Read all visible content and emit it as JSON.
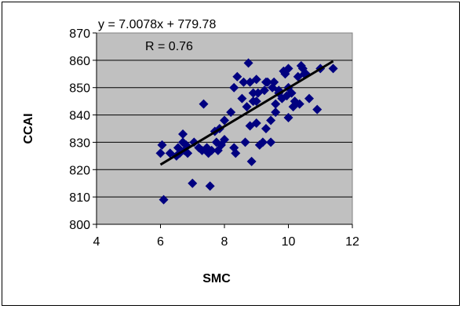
{
  "chart_data": {
    "type": "scatter",
    "title": "",
    "xlabel": "SMC",
    "ylabel": "CCAI",
    "xlim": [
      4,
      12
    ],
    "ylim": [
      800,
      870
    ],
    "xticks": [
      "4",
      "6",
      "8",
      "10",
      "12"
    ],
    "yticks": [
      "800",
      "810",
      "820",
      "830",
      "840",
      "850",
      "860",
      "870"
    ],
    "plot_background": "#c0c0c0",
    "marker_color": "#000080",
    "marker_shape": "diamond",
    "grid": "horizontal",
    "legend": "none",
    "annotations": [
      "y = 7.0078x + 779.78",
      "R = 0.76"
    ],
    "trendline": {
      "slope": 7.0078,
      "intercept": 779.78,
      "x_range": [
        6.0,
        11.4
      ],
      "color": "#000000"
    },
    "series": [
      {
        "points": [
          [
            6.0,
            826
          ],
          [
            6.05,
            829
          ],
          [
            6.1,
            809
          ],
          [
            6.3,
            826
          ],
          [
            6.5,
            825
          ],
          [
            6.55,
            828
          ],
          [
            6.6,
            826
          ],
          [
            6.7,
            833
          ],
          [
            6.7,
            830
          ],
          [
            6.75,
            827
          ],
          [
            6.8,
            829
          ],
          [
            6.85,
            826
          ],
          [
            7.0,
            815
          ],
          [
            7.05,
            830
          ],
          [
            7.2,
            828
          ],
          [
            7.3,
            827
          ],
          [
            7.35,
            844
          ],
          [
            7.45,
            828
          ],
          [
            7.5,
            826
          ],
          [
            7.55,
            814
          ],
          [
            7.6,
            827
          ],
          [
            7.7,
            834
          ],
          [
            7.75,
            830
          ],
          [
            7.8,
            827
          ],
          [
            7.85,
            835
          ],
          [
            7.9,
            829
          ],
          [
            8.0,
            831
          ],
          [
            8.0,
            838
          ],
          [
            8.2,
            841
          ],
          [
            8.3,
            828
          ],
          [
            8.3,
            850
          ],
          [
            8.35,
            826
          ],
          [
            8.4,
            854
          ],
          [
            8.55,
            846
          ],
          [
            8.6,
            852
          ],
          [
            8.65,
            830
          ],
          [
            8.7,
            843
          ],
          [
            8.75,
            859
          ],
          [
            8.8,
            852
          ],
          [
            8.8,
            836
          ],
          [
            8.85,
            823
          ],
          [
            8.9,
            848
          ],
          [
            8.9,
            845
          ],
          [
            9.0,
            853
          ],
          [
            9.0,
            845
          ],
          [
            9.0,
            837
          ],
          [
            9.05,
            848
          ],
          [
            9.1,
            829
          ],
          [
            9.2,
            830
          ],
          [
            9.25,
            849
          ],
          [
            9.3,
            852
          ],
          [
            9.3,
            835
          ],
          [
            9.35,
            852
          ],
          [
            9.45,
            830
          ],
          [
            9.45,
            838
          ],
          [
            9.5,
            850
          ],
          [
            9.55,
            852
          ],
          [
            9.6,
            844
          ],
          [
            9.6,
            841
          ],
          [
            9.7,
            849
          ],
          [
            9.7,
            848
          ],
          [
            9.8,
            846
          ],
          [
            9.85,
            856
          ],
          [
            9.9,
            855
          ],
          [
            9.95,
            847
          ],
          [
            10.0,
            857
          ],
          [
            10.0,
            850
          ],
          [
            10.0,
            839
          ],
          [
            10.1,
            848
          ],
          [
            10.15,
            843
          ],
          [
            10.2,
            845
          ],
          [
            10.3,
            854
          ],
          [
            10.35,
            844
          ],
          [
            10.4,
            858
          ],
          [
            10.45,
            857
          ],
          [
            10.5,
            855
          ],
          [
            10.55,
            855
          ],
          [
            10.65,
            846
          ],
          [
            10.9,
            842
          ],
          [
            11.0,
            857
          ],
          [
            11.4,
            857
          ]
        ]
      }
    ]
  }
}
